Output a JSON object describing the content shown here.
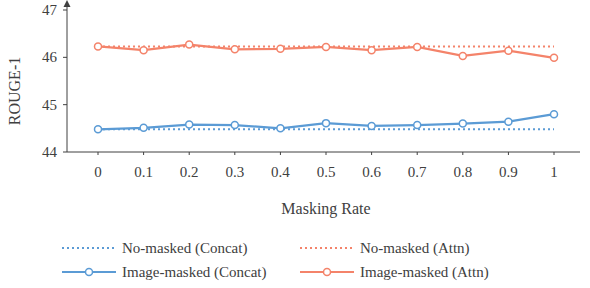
{
  "chart_data": {
    "type": "line",
    "x_label": "Masking Rate",
    "y_label": "ROUGE-1",
    "x": [
      0,
      0.1,
      0.2,
      0.3,
      0.4,
      0.5,
      0.6,
      0.7,
      0.8,
      0.9,
      1
    ],
    "xlim": [
      -0.068,
      1.057
    ],
    "xticks": [
      0,
      0.1,
      0.2,
      0.3,
      0.4,
      0.5,
      0.6,
      0.7,
      0.8,
      0.9,
      1
    ],
    "ylim": [
      44,
      47
    ],
    "yticks": [
      44,
      45,
      46,
      47
    ],
    "grid": false,
    "legend": "bottom",
    "series": [
      {
        "name": "No-masked (Concat)",
        "color": "#5b9bd5",
        "line_style": "dotted",
        "marker": "none",
        "values": [
          44.48,
          44.48,
          44.48,
          44.48,
          44.48,
          44.48,
          44.48,
          44.48,
          44.48,
          44.48,
          44.48
        ]
      },
      {
        "name": "Image-masked (Concat)",
        "color": "#5b9bd5",
        "line_style": "solid",
        "marker": "circle",
        "values": [
          44.48,
          44.51,
          44.58,
          44.57,
          44.5,
          44.61,
          44.55,
          44.57,
          44.6,
          44.64,
          44.8
        ]
      },
      {
        "name": "No-masked (Attn)",
        "color": "#f4836a",
        "line_style": "dotted",
        "marker": "none",
        "values": [
          46.23,
          46.23,
          46.23,
          46.23,
          46.23,
          46.23,
          46.23,
          46.23,
          46.23,
          46.23,
          46.23
        ]
      },
      {
        "name": "Image-masked (Attn)",
        "color": "#f4836a",
        "line_style": "solid",
        "marker": "circle",
        "values": [
          46.23,
          46.15,
          46.27,
          46.17,
          46.18,
          46.22,
          46.15,
          46.22,
          46.03,
          46.14,
          45.99
        ]
      }
    ]
  }
}
